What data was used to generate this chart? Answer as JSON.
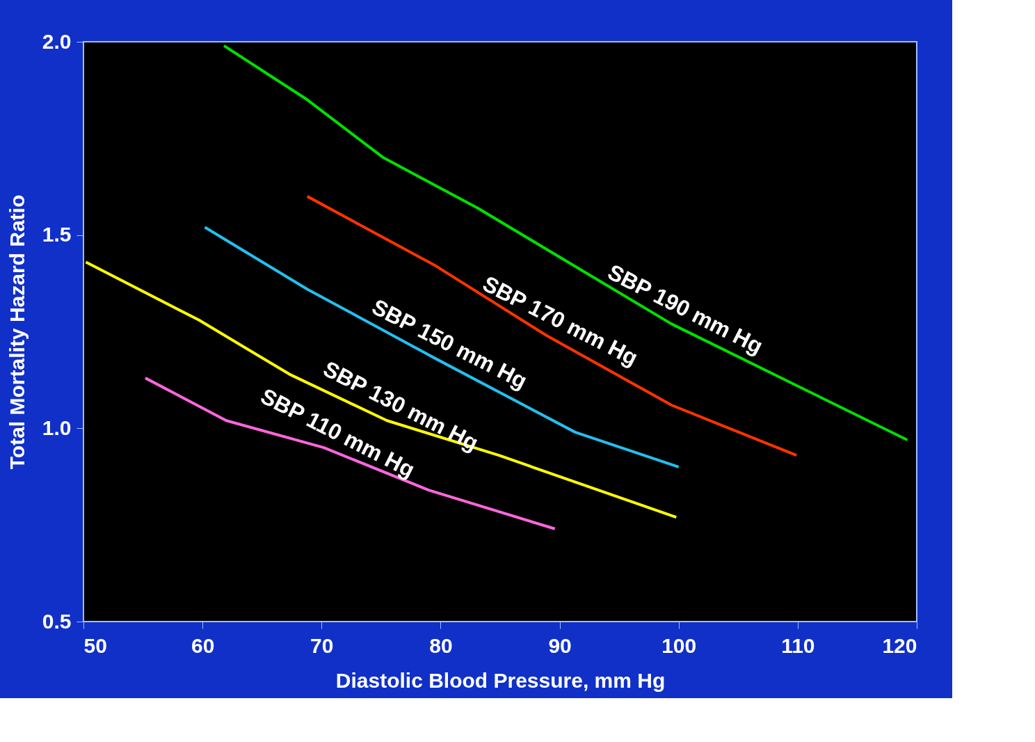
{
  "chart_data": {
    "type": "line",
    "xlabel": "Diastolic Blood Pressure, mm Hg",
    "ylabel": "Total Mortality Hazard Ratio",
    "xlim": [
      50,
      120
    ],
    "xticks": [
      50,
      60,
      70,
      80,
      90,
      100,
      110,
      120
    ],
    "ylim": [
      0.5,
      2.0
    ],
    "yticks": [
      0.5,
      {
        "value": 1,
        "label": "1.0"
      },
      1.5,
      {
        "value": 2,
        "label": "2.0"
      }
    ],
    "grid": false,
    "marker": "none",
    "line_style": "solid",
    "series": [
      {
        "name": "SBP 190 mm Hg",
        "color": "#00e000",
        "x": [
          61.8,
          68.8,
          75.2,
          83.1,
          90.7,
          99.4,
          109.3,
          119.2
        ],
        "values": [
          1.99,
          1.85,
          1.7,
          1.57,
          1.43,
          1.27,
          1.12,
          0.97
        ]
      },
      {
        "name": "SBP 170 mm Hg",
        "color": "#ff3300",
        "x": [
          68.8,
          79.6,
          88.9,
          99.4,
          109.9
        ],
        "values": [
          1.6,
          1.42,
          1.24,
          1.06,
          0.93
        ]
      },
      {
        "name": "SBP 150 mm Hg",
        "color": "#22c0f0",
        "x": [
          60.2,
          68.8,
          79.6,
          91.3,
          100.0
        ],
        "values": [
          1.52,
          1.36,
          1.18,
          0.99,
          0.9
        ]
      },
      {
        "name": "SBP 130 mm Hg",
        "color": "#ffff00",
        "x": [
          50.2,
          59.7,
          67.3,
          75.5,
          84.9,
          99.8
        ],
        "values": [
          1.43,
          1.28,
          1.14,
          1.02,
          0.93,
          0.77
        ]
      },
      {
        "name": "SBP 110 mm Hg",
        "color": "#ff66dd",
        "x": [
          55.2,
          62.0,
          70.2,
          79.0,
          89.6
        ],
        "values": [
          1.13,
          1.02,
          0.95,
          0.84,
          0.74
        ]
      }
    ]
  }
}
